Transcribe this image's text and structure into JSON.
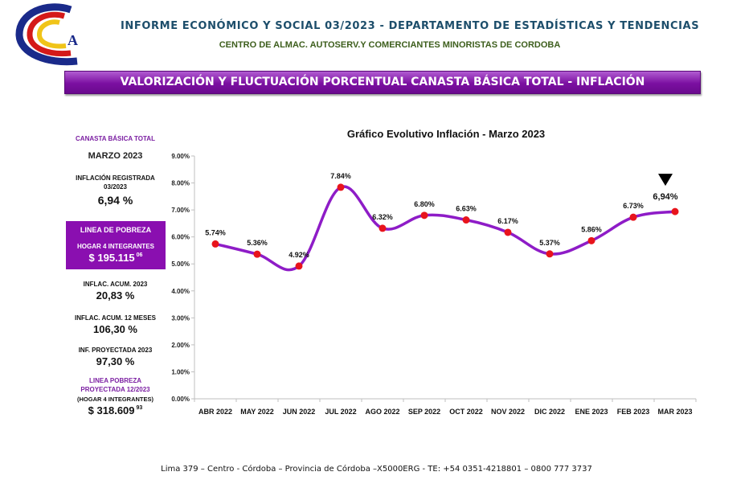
{
  "header": {
    "title": "INFORME ECONÓMICO Y SOCIAL 03/2023 - DEPARTAMENTO DE ESTADÍSTICAS Y TENDENCIAS",
    "subtitle": "CENTRO DE ALMAC. AUTOSERV.Y COMERCIANTES MINORISTAS DE CORDOBA",
    "logo_letter": "A"
  },
  "banner": "VALORIZACIÓN Y FLUCTUACIÓN PORCENTUAL CANASTA BÁSICA TOTAL - INFLACIÓN",
  "sidebar": {
    "canasta_label": "CANASTA BÁSICA TOTAL",
    "month": "MARZO 2023",
    "inflacion_label_1": "INFLACIÓN REGISTRADA",
    "inflacion_label_2": "03/2023",
    "inflacion_value": "6,94 %",
    "pobreza_title": "LINEA DE POBREZA",
    "pobreza_sub": "HOGAR 4 INTEGRANTES",
    "pobreza_value": "$ 195.115",
    "pobreza_cents": "06",
    "acum_label": "INFLAC. ACUM. 2023",
    "acum_value": "20,83 %",
    "acum12_label": "INFLAC. ACUM. 12 MESES",
    "acum12_value": "106,30 %",
    "proy_label": "INF. PROYECTADA 2023",
    "proy_value": "97,30 %",
    "lp_proy_1": "LINEA POBREZA",
    "lp_proy_2": "PROYECTADA 12/2023",
    "lp_proy_3": "(HOGAR 4 INTEGRANTES)",
    "lp_proy_value": "$ 318.609",
    "lp_proy_cents": "93"
  },
  "chart_data": {
    "type": "line",
    "title": "Gráfico Evolutivo Inflación - Marzo 2023",
    "categories": [
      "ABR 2022",
      "MAY 2022",
      "JUN 2022",
      "JUL 2022",
      "AGO 2022",
      "SEP 2022",
      "OCT 2022",
      "NOV 2022",
      "DIC 2022",
      "ENE 2023",
      "FEB 2023",
      "MAR 2023"
    ],
    "values": [
      5.74,
      5.36,
      4.92,
      7.84,
      6.32,
      6.8,
      6.63,
      6.17,
      5.37,
      5.86,
      6.73,
      6.94
    ],
    "data_labels": [
      "5.74%",
      "5.36%",
      "4.92%",
      "7.84%",
      "6.32%",
      "6.80%",
      "6.63%",
      "6.17%",
      "5.37%",
      "5.86%",
      "6.73%",
      "6,94%"
    ],
    "yticks": [
      "0.00%",
      "1.00%",
      "2.00%",
      "3.00%",
      "4.00%",
      "5.00%",
      "6.00%",
      "7.00%",
      "8.00%",
      "9.00%"
    ],
    "ylim": [
      0,
      9
    ],
    "grid": false,
    "line_color": "#8e1cc7",
    "marker_color": "#e8141c",
    "highlight_last": true
  },
  "footer": "Lima 379 – Centro - Córdoba – Provincia de Córdoba –X5000ERG - TE: +54 0351-4218801 – 0800 777 3737"
}
